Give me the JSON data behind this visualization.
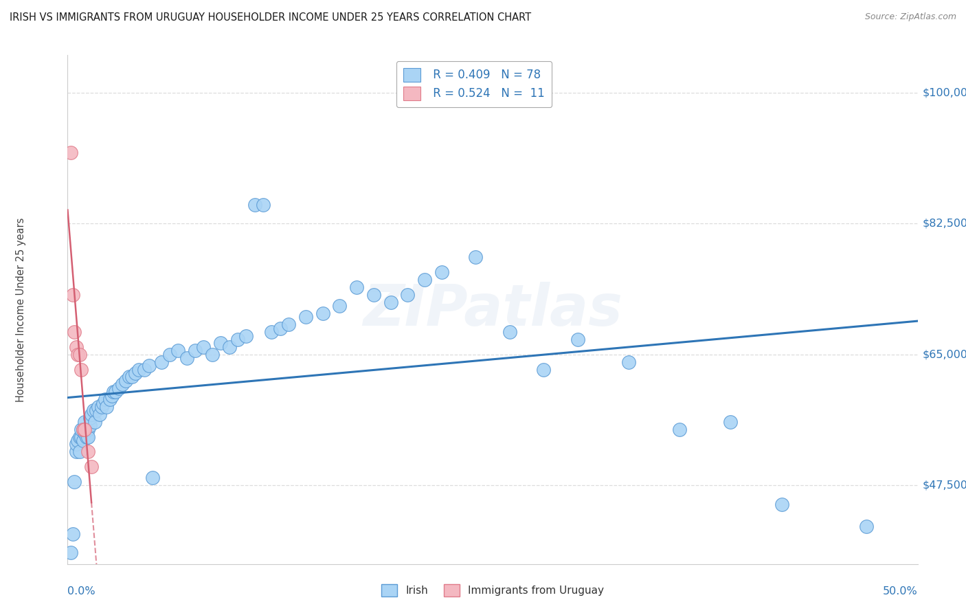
{
  "title": "IRISH VS IMMIGRANTS FROM URUGUAY HOUSEHOLDER INCOME UNDER 25 YEARS CORRELATION CHART",
  "source": "Source: ZipAtlas.com",
  "ylabel": "Householder Income Under 25 years",
  "xmin": 0.0,
  "xmax": 0.5,
  "ymin": 37000,
  "ymax": 105000,
  "yticks": [
    47500,
    65000,
    82500,
    100000
  ],
  "ytick_labels": [
    "$47,500",
    "$65,000",
    "$82,500",
    "$100,000"
  ],
  "irish_R": "0.409",
  "irish_N": "78",
  "uruguay_R": "0.524",
  "uruguay_N": "11",
  "irish_color": "#aad4f5",
  "irish_edge_color": "#5b9bd5",
  "irish_line_color": "#2e75b6",
  "uruguay_color": "#f4b8c1",
  "uruguay_edge_color": "#e07b8a",
  "uruguay_line_color": "#d45f72",
  "legend_label_irish": "Irish",
  "legend_label_uruguay": "Immigrants from Uruguay",
  "irish_x": [
    0.002,
    0.003,
    0.004,
    0.005,
    0.005,
    0.006,
    0.007,
    0.007,
    0.008,
    0.008,
    0.009,
    0.009,
    0.01,
    0.01,
    0.011,
    0.011,
    0.012,
    0.012,
    0.013,
    0.013,
    0.014,
    0.015,
    0.016,
    0.017,
    0.018,
    0.019,
    0.02,
    0.021,
    0.022,
    0.023,
    0.025,
    0.026,
    0.027,
    0.028,
    0.03,
    0.032,
    0.034,
    0.036,
    0.038,
    0.04,
    0.042,
    0.045,
    0.048,
    0.05,
    0.055,
    0.06,
    0.065,
    0.07,
    0.075,
    0.08,
    0.085,
    0.09,
    0.095,
    0.1,
    0.105,
    0.11,
    0.115,
    0.12,
    0.125,
    0.13,
    0.14,
    0.15,
    0.16,
    0.17,
    0.18,
    0.19,
    0.2,
    0.21,
    0.22,
    0.24,
    0.26,
    0.28,
    0.3,
    0.33,
    0.36,
    0.39,
    0.42,
    0.47
  ],
  "irish_y": [
    38500,
    41000,
    48000,
    52000,
    53000,
    53500,
    54000,
    52000,
    54000,
    55000,
    55000,
    53500,
    54500,
    56000,
    55000,
    54000,
    55000,
    54000,
    55500,
    56500,
    57000,
    57500,
    56000,
    57500,
    58000,
    57000,
    58000,
    58500,
    59000,
    58000,
    59000,
    59500,
    60000,
    60000,
    60500,
    61000,
    61500,
    62000,
    62000,
    62500,
    63000,
    63000,
    63500,
    48500,
    64000,
    65000,
    65500,
    64500,
    65500,
    66000,
    65000,
    66500,
    66000,
    67000,
    67500,
    85000,
    85000,
    68000,
    68500,
    69000,
    70000,
    70500,
    71500,
    74000,
    73000,
    72000,
    73000,
    75000,
    76000,
    78000,
    68000,
    63000,
    67000,
    64000,
    55000,
    56000,
    45000,
    42000
  ],
  "uruguay_x": [
    0.002,
    0.003,
    0.004,
    0.005,
    0.006,
    0.007,
    0.008,
    0.009,
    0.01,
    0.012,
    0.014
  ],
  "uruguay_y": [
    92000,
    73000,
    68000,
    66000,
    65000,
    65000,
    63000,
    55000,
    55000,
    52000,
    50000
  ]
}
